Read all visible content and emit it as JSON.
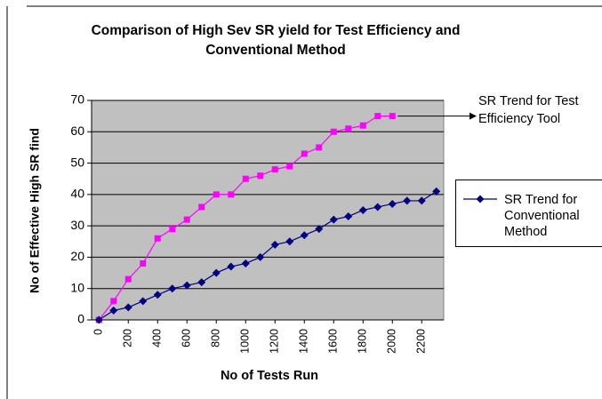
{
  "chart_data": {
    "type": "line",
    "title": "Comparison of High Sev SR yield for Test Efficiency and Conventional Method",
    "x_label": "No of Tests Run",
    "y_label": "No of Effective High SR find",
    "x": [
      0,
      100,
      200,
      300,
      400,
      500,
      600,
      700,
      800,
      900,
      1000,
      1100,
      1200,
      1300,
      1400,
      1500,
      1600,
      1700,
      1800,
      1900,
      2000,
      2100,
      2200,
      2300
    ],
    "series": [
      {
        "name": "SR Trend for Test Efficiency Tool",
        "color": "#ff00ff",
        "marker": "square",
        "values": [
          0,
          6,
          13,
          18,
          26,
          29,
          32,
          36,
          40,
          40,
          45,
          46,
          48,
          49,
          53,
          55,
          60,
          61,
          62,
          65,
          65,
          null,
          null,
          null
        ]
      },
      {
        "name": "SR Trend for Conventional Method",
        "color": "#000080",
        "marker": "diamond",
        "values": [
          0,
          3,
          4,
          6,
          8,
          10,
          11,
          12,
          15,
          17,
          18,
          20,
          24,
          25,
          27,
          29,
          32,
          33,
          35,
          36,
          37,
          38,
          38,
          41
        ]
      }
    ],
    "xlim": [
      -50,
      2350
    ],
    "xticks": [
      0,
      200,
      400,
      600,
      800,
      1000,
      1200,
      1400,
      1600,
      1800,
      2000,
      2200
    ],
    "ylim": [
      0,
      70
    ],
    "yticks": [
      0,
      10,
      20,
      30,
      40,
      50,
      60,
      70
    ],
    "grid": true,
    "plot_background": "#c0c0c0"
  }
}
